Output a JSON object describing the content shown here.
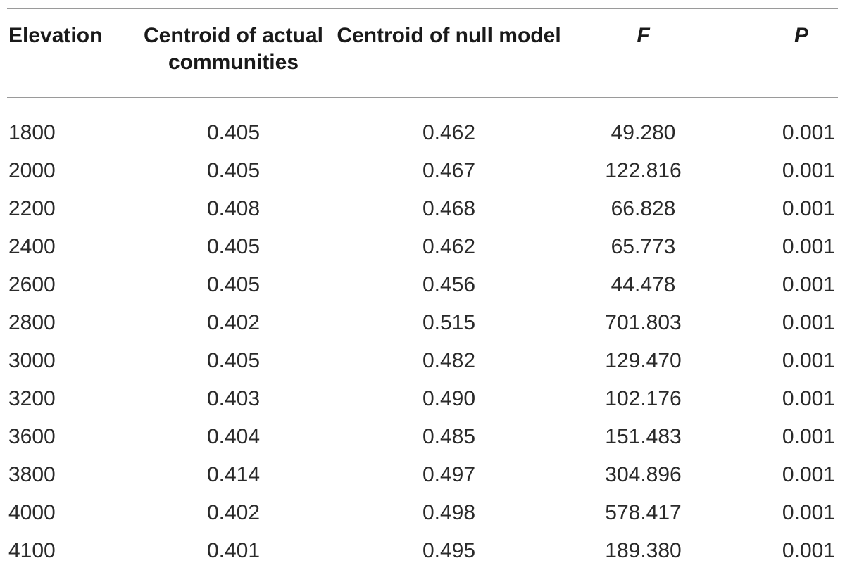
{
  "table": {
    "headers": [
      "Elevation",
      "Centroid of actual communities",
      "Centroid of null model",
      "F",
      "P"
    ],
    "rows": [
      [
        "1800",
        "0.405",
        "0.462",
        "49.280",
        "0.001"
      ],
      [
        "2000",
        "0.405",
        "0.467",
        "122.816",
        "0.001"
      ],
      [
        "2200",
        "0.408",
        "0.468",
        "66.828",
        "0.001"
      ],
      [
        "2400",
        "0.405",
        "0.462",
        "65.773",
        "0.001"
      ],
      [
        "2600",
        "0.405",
        "0.456",
        "44.478",
        "0.001"
      ],
      [
        "2800",
        "0.402",
        "0.515",
        "701.803",
        "0.001"
      ],
      [
        "3000",
        "0.405",
        "0.482",
        "129.470",
        "0.001"
      ],
      [
        "3200",
        "0.403",
        "0.490",
        "102.176",
        "0.001"
      ],
      [
        "3600",
        "0.404",
        "0.485",
        "151.483",
        "0.001"
      ],
      [
        "3800",
        "0.414",
        "0.497",
        "304.896",
        "0.001"
      ],
      [
        "4000",
        "0.402",
        "0.498",
        "578.417",
        "0.001"
      ],
      [
        "4100",
        "0.401",
        "0.495",
        "189.380",
        "0.001"
      ]
    ]
  }
}
